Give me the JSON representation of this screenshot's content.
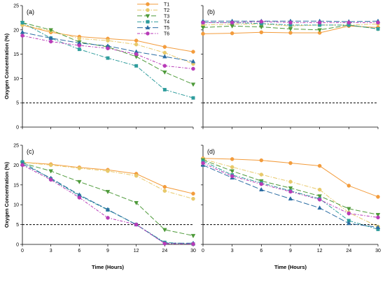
{
  "chart_data": [
    {
      "panel_label": "(a)",
      "type": "line",
      "categories": [
        "0",
        "3",
        "6",
        "9",
        "12",
        "24",
        "30"
      ],
      "ylabel": "Oxygen Concentration (%)",
      "ylim": [
        0,
        25
      ],
      "yticks": [
        0,
        5,
        10,
        15,
        20,
        25
      ],
      "reference_line": 5,
      "grid": false,
      "legend_position": "top-center",
      "series": [
        {
          "name": "T1",
          "color": "#F39C3C",
          "marker": "circle",
          "values": [
            21.0,
            19.5,
            18.6,
            18.2,
            17.8,
            16.5,
            15.5
          ]
        },
        {
          "name": "T2",
          "color": "#E8C96A",
          "marker": "circle",
          "values": [
            21.0,
            19.8,
            18.2,
            17.8,
            17.0,
            15.3,
            13.0
          ]
        },
        {
          "name": "T3",
          "color": "#4E9A3A",
          "marker": "triangle-down",
          "values": [
            21.5,
            20.0,
            17.5,
            16.5,
            14.5,
            11.3,
            8.8
          ]
        },
        {
          "name": "T4",
          "color": "#2E9C9C",
          "marker": "square",
          "values": [
            21.5,
            18.3,
            16.0,
            14.2,
            12.6,
            7.7,
            6.0
          ]
        },
        {
          "name": "T5",
          "color": "#2B6DA3",
          "marker": "triangle-up",
          "values": [
            19.5,
            18.3,
            17.3,
            16.7,
            15.5,
            14.5,
            13.5
          ]
        },
        {
          "name": "T6",
          "color": "#B83BB8",
          "marker": "circle",
          "values": [
            18.8,
            17.6,
            16.8,
            16.2,
            15.0,
            12.6,
            12.0
          ]
        }
      ]
    },
    {
      "panel_label": "(b)",
      "type": "line",
      "categories": [
        "0",
        "3",
        "6",
        "9",
        "12",
        "24",
        "30"
      ],
      "ylim": [
        0,
        25
      ],
      "yticks": [
        0,
        5,
        10,
        15,
        20,
        25
      ],
      "reference_line": 5,
      "grid": false,
      "series": [
        {
          "name": "T1",
          "color": "#F39C3C",
          "marker": "circle",
          "values": [
            19.2,
            19.3,
            19.5,
            19.4,
            19.4,
            20.8,
            20.5
          ]
        },
        {
          "name": "T2",
          "color": "#E8C96A",
          "marker": "circle",
          "values": [
            21.0,
            21.2,
            21.2,
            20.8,
            21.0,
            21.0,
            21.2
          ]
        },
        {
          "name": "T3",
          "color": "#4E9A3A",
          "marker": "triangle-down",
          "values": [
            20.5,
            20.8,
            20.6,
            20.2,
            20.0,
            21.0,
            20.2
          ]
        },
        {
          "name": "T4",
          "color": "#2E9C9C",
          "marker": "square",
          "values": [
            21.5,
            21.5,
            21.3,
            21.0,
            21.0,
            21.0,
            20.2
          ]
        },
        {
          "name": "T5",
          "color": "#2B6DA3",
          "marker": "triangle-up",
          "values": [
            21.8,
            21.8,
            21.8,
            21.8,
            21.8,
            21.7,
            21.8
          ]
        },
        {
          "name": "T6",
          "color": "#B83BB8",
          "marker": "circle",
          "values": [
            21.5,
            21.5,
            21.7,
            21.5,
            21.5,
            21.5,
            21.5
          ]
        }
      ]
    },
    {
      "panel_label": "(c)",
      "type": "line",
      "categories": [
        "0",
        "3",
        "6",
        "9",
        "12",
        "24",
        "30"
      ],
      "xlabel": "Time (Hours)",
      "ylabel": "Oxygen Concentration (%)",
      "ylim": [
        0,
        25
      ],
      "yticks": [
        0,
        5,
        10,
        15,
        20,
        25
      ],
      "reference_line": 5,
      "grid": false,
      "series": [
        {
          "name": "T1",
          "color": "#F39C3C",
          "marker": "circle",
          "values": [
            20.7,
            20.2,
            19.4,
            18.8,
            17.8,
            14.5,
            12.8
          ]
        },
        {
          "name": "T2",
          "color": "#E8C96A",
          "marker": "circle",
          "values": [
            20.7,
            20.0,
            19.2,
            18.5,
            17.3,
            13.5,
            11.5
          ]
        },
        {
          "name": "T3",
          "color": "#4E9A3A",
          "marker": "triangle-down",
          "values": [
            20.5,
            18.5,
            15.8,
            13.3,
            10.5,
            3.7,
            2.2
          ]
        },
        {
          "name": "T4",
          "color": "#2E9C9C",
          "marker": "square",
          "values": [
            20.8,
            16.5,
            12.3,
            8.7,
            5.0,
            0.5,
            0.1
          ]
        },
        {
          "name": "T5",
          "color": "#2B6DA3",
          "marker": "triangle-up",
          "values": [
            20.3,
            16.7,
            12.5,
            8.8,
            5.0,
            0.3,
            0.3
          ]
        },
        {
          "name": "T6",
          "color": "#B83BB8",
          "marker": "circle",
          "values": [
            20.0,
            16.3,
            11.8,
            6.7,
            5.0,
            0.2,
            0.1
          ]
        }
      ]
    },
    {
      "panel_label": "(d)",
      "type": "line",
      "categories": [
        "0",
        "3",
        "6",
        "9",
        "12",
        "24",
        "30"
      ],
      "xlabel": "Time (Hours)",
      "ylim": [
        0,
        25
      ],
      "yticks": [
        0,
        5,
        10,
        15,
        20,
        25
      ],
      "reference_line": 5,
      "grid": false,
      "series": [
        {
          "name": "T1",
          "color": "#F39C3C",
          "marker": "circle",
          "values": [
            21.7,
            21.5,
            21.2,
            20.5,
            19.8,
            14.8,
            12.0
          ]
        },
        {
          "name": "T2",
          "color": "#E8C96A",
          "marker": "circle",
          "values": [
            21.5,
            19.5,
            17.6,
            15.8,
            13.8,
            8.0,
            4.5
          ]
        },
        {
          "name": "T3",
          "color": "#4E9A3A",
          "marker": "triangle-down",
          "values": [
            21.3,
            18.5,
            16.0,
            14.2,
            12.2,
            9.0,
            7.5
          ]
        },
        {
          "name": "T4",
          "color": "#2E9C9C",
          "marker": "square",
          "values": [
            21.0,
            17.5,
            15.5,
            13.5,
            11.5,
            6.0,
            3.8
          ]
        },
        {
          "name": "T5",
          "color": "#2B6DA3",
          "marker": "triangle-up",
          "values": [
            20.0,
            16.8,
            13.8,
            11.5,
            9.2,
            5.3,
            4.3
          ]
        },
        {
          "name": "T6",
          "color": "#B83BB8",
          "marker": "circle",
          "values": [
            20.5,
            17.2,
            15.2,
            13.3,
            11.3,
            7.8,
            6.8
          ]
        }
      ]
    }
  ]
}
